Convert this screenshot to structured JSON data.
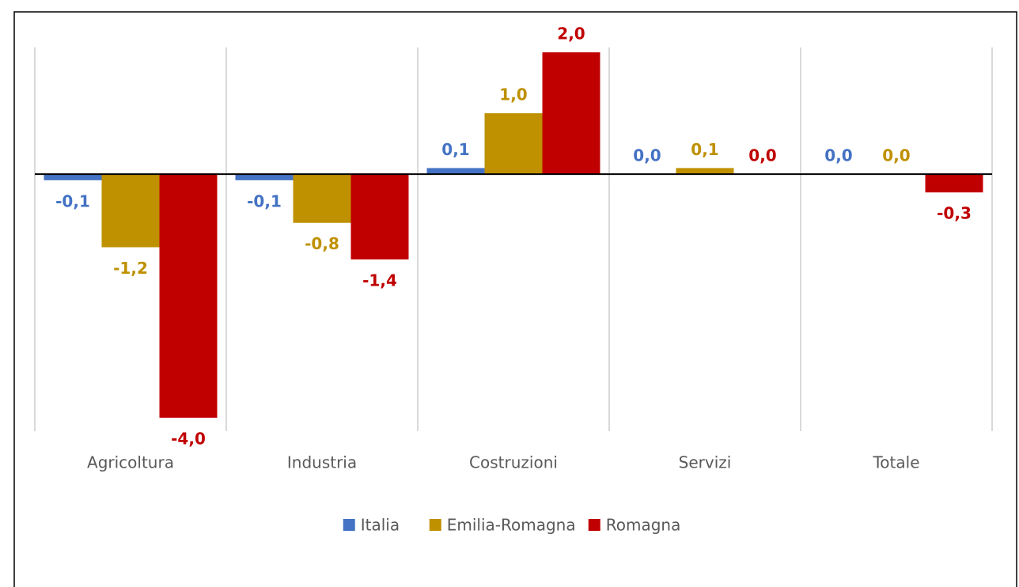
{
  "chart_data": {
    "type": "bar",
    "categories": [
      "Agricoltura",
      "Industria",
      "Costruzioni",
      "Servizi",
      "Totale"
    ],
    "series": [
      {
        "name": "Italia",
        "color": "#4472c4",
        "values": [
          -0.1,
          -0.1,
          0.1,
          0.0,
          0.0
        ],
        "value_labels": [
          "-0,1",
          "-0,1",
          "0,1",
          "0,0",
          "0,0"
        ]
      },
      {
        "name": "Emilia-Romagna",
        "color": "#bf9000",
        "values": [
          -1.2,
          -0.8,
          1.0,
          0.1,
          0.0
        ],
        "value_labels": [
          "-1,2",
          "-0,8",
          "1,0",
          "0,1",
          "0,0"
        ]
      },
      {
        "name": "Romagna",
        "color": "#c00000",
        "values": [
          -4.0,
          -1.4,
          2.0,
          0.0,
          -0.3
        ],
        "value_labels": [
          "-4,0",
          "-1,4",
          "2,0",
          "0,0",
          "-0,3"
        ]
      }
    ],
    "ylim": [
      -4.22,
      2.08
    ],
    "legend": "bottom"
  }
}
